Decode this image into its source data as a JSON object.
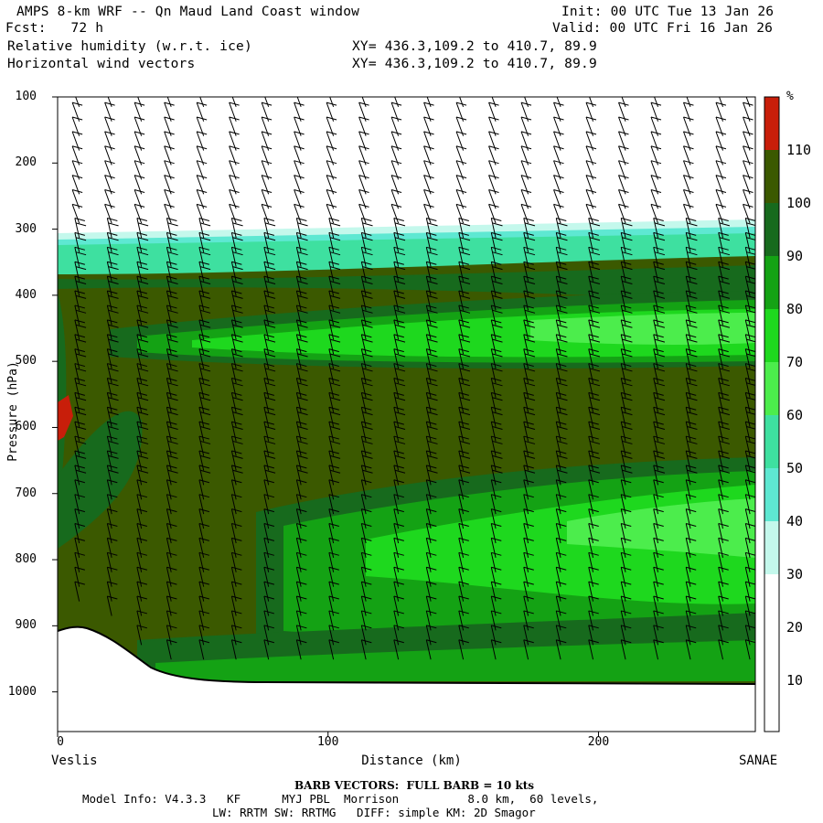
{
  "header": {
    "title": "AMPS 8-km WRF -- Qn Maud Land Coast window",
    "fcst": "Fcst:   72 h",
    "field1": "Relative humidity (w.r.t. ice)",
    "field2": "Horizontal wind vectors",
    "init": "Init: 00 UTC Tue 13 Jan 26",
    "valid": "Valid: 00 UTC Fri 16 Jan 26",
    "xy1": "XY= 436.3,109.2 to 410.7, 89.9",
    "xy2": "XY= 436.3,109.2 to 410.7, 89.9"
  },
  "colors": {
    "rh_100_110": "#3b5900",
    "rh_90_100": "#176a1d",
    "rh_80_90": "#14a214",
    "rh_70_80": "#1ed81e",
    "rh_60_70": "#4ced4c",
    "rh_50_60": "#3ee0a0",
    "rh_40_50": "#5ee8d2",
    "rh_30_40": "#c4f8ec",
    "rh_over_110": "#c81e0a",
    "terrain": "#ffffff"
  },
  "chart_data": {
    "type": "heatmap",
    "title": "Relative humidity (w.r.t. ice)",
    "xlabel": "Distance (km)",
    "ylabel": "Pressure (hPa)",
    "x_ticks": [
      0,
      100,
      200
    ],
    "x_tick_labels": [
      "0",
      "100",
      "200"
    ],
    "xlim": [
      0,
      258
    ],
    "y_ticks": [
      100,
      200,
      300,
      400,
      500,
      600,
      700,
      800,
      900,
      1000
    ],
    "y_tick_labels": [
      "100",
      "200",
      "300",
      "400",
      "500",
      "600",
      "700",
      "800",
      "900",
      "1000"
    ],
    "ylim": [
      100,
      1060
    ],
    "x_endpoint_left": "Veslis",
    "x_endpoint_right": "SANAE",
    "colorbar": {
      "unit": "%",
      "levels": [
        10,
        20,
        30,
        40,
        50,
        60,
        70,
        80,
        90,
        100,
        110
      ]
    },
    "terrain_surface_hpa": [
      [
        0,
        900
      ],
      [
        3,
        898
      ],
      [
        10,
        895
      ],
      [
        18,
        905
      ],
      [
        25,
        925
      ],
      [
        30,
        945
      ],
      [
        35,
        962
      ],
      [
        42,
        970
      ],
      [
        50,
        975
      ],
      [
        70,
        975
      ],
      [
        90,
        978
      ],
      [
        130,
        978
      ],
      [
        200,
        976
      ],
      [
        258,
        978
      ]
    ],
    "wind_barb_columns_km": [
      8,
      20,
      31,
      42,
      54,
      66,
      78,
      90,
      102,
      114,
      126,
      138,
      150,
      162,
      174,
      186,
      198,
      210,
      222,
      234,
      246,
      256
    ],
    "barb_note": "BARB VECTORS:  FULL BARB = 10 kts"
  },
  "footer": {
    "barb": "BARB VECTORS:  FULL BARB = 10 kts",
    "model": "Model Info: V4.3.3   KF      MYJ PBL  Morrison          8.0 km,  60 levels,",
    "physics": "LW: RRTM SW: RRTMG   DIFF: simple KM: 2D Smagor"
  }
}
